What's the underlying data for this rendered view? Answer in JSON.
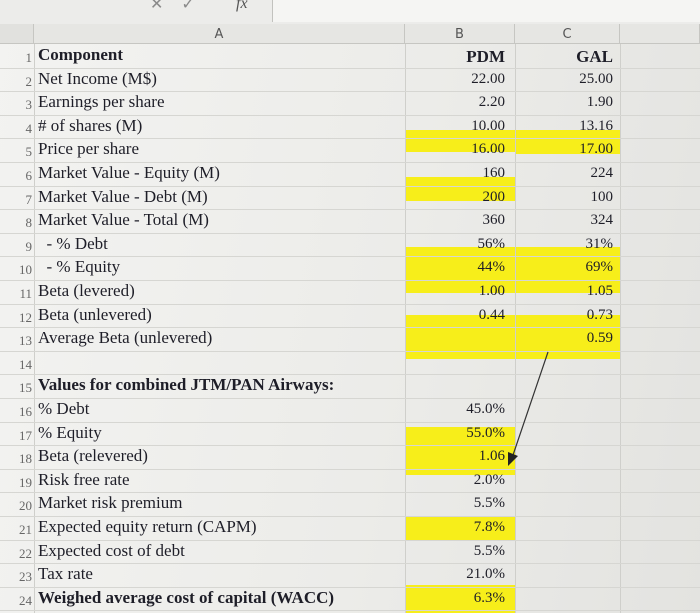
{
  "formula_bar": {
    "fx_label": "fx"
  },
  "columns": {
    "a": "A",
    "b": "B",
    "c": "C"
  },
  "rows": [
    {
      "n": "1",
      "label": "Component",
      "bold": true,
      "b": "PDM",
      "c": "GAL"
    },
    {
      "n": "2",
      "label": "Net Income (M$)",
      "b": "22.00",
      "c": "25.00"
    },
    {
      "n": "3",
      "label": "Earnings per share",
      "b": "2.20",
      "c": "1.90"
    },
    {
      "n": "4",
      "label": "# of shares (M)",
      "b": "10.00",
      "c": "13.16"
    },
    {
      "n": "5",
      "label": "Price per share",
      "b": "16.00",
      "c": "17.00"
    },
    {
      "n": "6",
      "label": "Market Value - Equity (M)",
      "b": "160",
      "c": "224"
    },
    {
      "n": "7",
      "label": "Market Value - Debt (M)",
      "b": "200",
      "c": "100"
    },
    {
      "n": "8",
      "label": "Market Value - Total (M)",
      "b": "360",
      "c": "324"
    },
    {
      "n": "9",
      "label": "  - % Debt",
      "b": "56%",
      "c": "31%"
    },
    {
      "n": "10",
      "label": "  - % Equity",
      "b": "44%",
      "c": "69%"
    },
    {
      "n": "11",
      "label": "Beta (levered)",
      "b": "1.00",
      "c": "1.05"
    },
    {
      "n": "12",
      "label": "Beta (unlevered)",
      "b": "0.44",
      "c": "0.73"
    },
    {
      "n": "13",
      "label": "Average Beta (unlevered)",
      "b": "",
      "c": "0.59"
    },
    {
      "n": "14",
      "label": "",
      "b": "",
      "c": ""
    },
    {
      "n": "15",
      "label": "Values for combined JTM/PAN Airways:",
      "bold": true,
      "b": "",
      "c": ""
    },
    {
      "n": "16",
      "label": "% Debt",
      "b": "45.0%",
      "c": ""
    },
    {
      "n": "17",
      "label": "% Equity",
      "b": "55.0%",
      "c": ""
    },
    {
      "n": "18",
      "label": "Beta (relevered)",
      "b": "1.06",
      "c": ""
    },
    {
      "n": "19",
      "label": "Risk free rate",
      "b": "2.0%",
      "c": ""
    },
    {
      "n": "20",
      "label": "Market risk premium",
      "b": "5.5%",
      "c": ""
    },
    {
      "n": "21",
      "label": "Expected equity return (CAPM)",
      "b": "7.8%",
      "c": ""
    },
    {
      "n": "22",
      "label": "Expected cost of debt",
      "b": "5.5%",
      "c": ""
    },
    {
      "n": "23",
      "label": "Tax rate",
      "b": "21.0%",
      "c": ""
    },
    {
      "n": "24",
      "label": "Weighed average cost of capital (WACC)",
      "bold": true,
      "b": "6.3%",
      "c": ""
    }
  ],
  "colors": {
    "highlight": "#f7ee1a",
    "text": "#1e1e28"
  }
}
